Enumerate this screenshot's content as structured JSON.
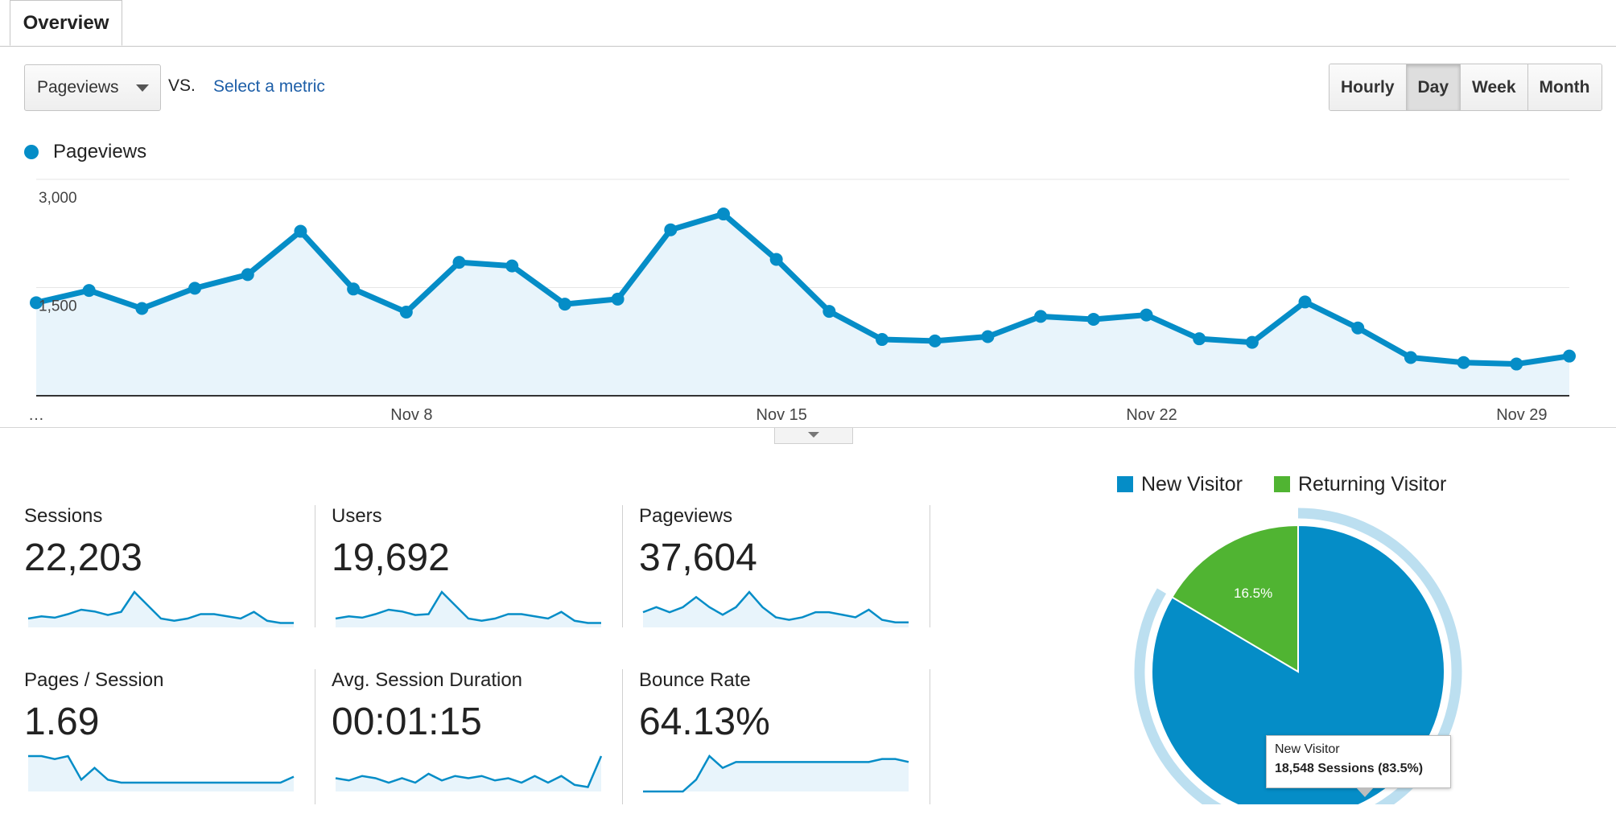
{
  "tab": {
    "label": "Overview"
  },
  "toolbar": {
    "metric_select_value": "Pageviews",
    "vs_label": "VS.",
    "select_metric_link": "Select a metric",
    "granularity": [
      "Hourly",
      "Day",
      "Week",
      "Month"
    ],
    "granularity_selected": "Day"
  },
  "legend": {
    "label": "Pageviews"
  },
  "colors": {
    "primary": "#058dc7",
    "area_fill": "#e8f4fb",
    "returning": "#50b432",
    "pie_ring": "#bcdff0"
  },
  "icons": {
    "collapse": "chevron-down-icon",
    "dropdown": "caret-down-icon"
  },
  "chart_data": {
    "type": "area",
    "series": [
      {
        "name": "Pageviews",
        "values": [
          1290,
          1460,
          1210,
          1490,
          1680,
          2280,
          1480,
          1160,
          1850,
          1800,
          1270,
          1340,
          2300,
          2520,
          1890,
          1170,
          780,
          760,
          820,
          1100,
          1060,
          1120,
          790,
          740,
          1300,
          940,
          530,
          460,
          440,
          550
        ]
      }
    ],
    "x_tick_labels": [
      "…",
      "Nov 8",
      "Nov 15",
      "Nov 22",
      "Nov 29"
    ],
    "y_tick_labels": [
      "1,500",
      "3,000"
    ],
    "ylim": [
      0,
      3000
    ],
    "grid": true
  },
  "tiles": [
    {
      "label": "Sessions",
      "value": "22,203",
      "spark": [
        2,
        2.5,
        2.2,
        3,
        4,
        3.6,
        2.8,
        3.5,
        8,
        5,
        2,
        1.5,
        2,
        3,
        3,
        2.5,
        2,
        3.5,
        1.5,
        1,
        1
      ]
    },
    {
      "label": "Users",
      "value": "19,692",
      "spark": [
        2,
        2.5,
        2.2,
        3,
        4,
        3.6,
        2.8,
        3,
        8,
        5,
        2,
        1.5,
        2,
        3,
        3,
        2.5,
        2,
        3.5,
        1.5,
        1,
        1
      ]
    },
    {
      "label": "Pageviews",
      "value": "37,604",
      "spark": [
        3,
        4,
        3,
        4,
        6,
        4,
        2.5,
        4,
        7,
        4,
        2,
        1.5,
        2,
        3,
        3,
        2.5,
        2,
        3.5,
        1.5,
        1,
        1
      ]
    },
    {
      "label": "Pages / Session",
      "value": "1.69",
      "spark": [
        6,
        6,
        5.5,
        6,
        2,
        4,
        2,
        1.5,
        1.5,
        1.5,
        1.5,
        1.5,
        1.5,
        1.5,
        1.5,
        1.5,
        1.5,
        1.5,
        1.5,
        1.5,
        2.5
      ]
    },
    {
      "label": "Avg. Session Duration",
      "value": "00:01:15",
      "spark": [
        3,
        2.5,
        3.5,
        3,
        2,
        3,
        2,
        4,
        2.5,
        3.5,
        3,
        3.5,
        2.5,
        3,
        2,
        3.5,
        2,
        3.5,
        1.5,
        1,
        8
      ]
    },
    {
      "label": "Bounce Rate",
      "value": "64.13%",
      "spark": [
        0,
        0,
        0,
        0,
        2,
        6,
        4,
        5,
        5,
        5,
        5,
        5,
        5,
        5,
        5,
        5,
        5,
        5,
        5.5,
        5.5,
        5
      ]
    }
  ],
  "pie": {
    "legend": [
      {
        "label": "New Visitor",
        "color": "#058dc7"
      },
      {
        "label": "Returning Visitor",
        "color": "#50b432"
      }
    ],
    "slices": [
      {
        "name": "New Visitor",
        "percent": 83.5,
        "color": "#058dc7"
      },
      {
        "name": "Returning Visitor",
        "percent": 16.5,
        "color": "#50b432"
      }
    ],
    "slice_label": "16.5%",
    "tooltip_title": "New Visitor",
    "tooltip_value": "18,548 Sessions (83.5%)"
  }
}
